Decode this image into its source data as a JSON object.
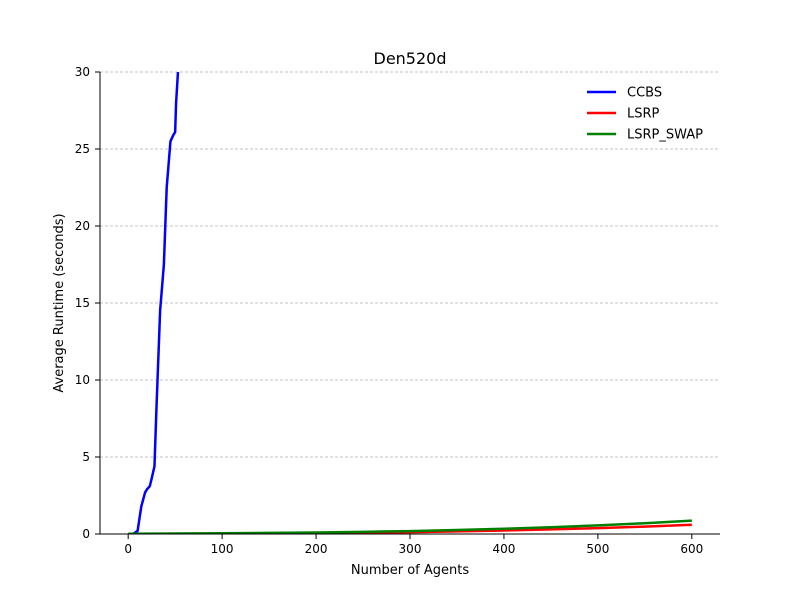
{
  "chart_data": {
    "type": "line",
    "title": "Den520d",
    "xlabel": "Number of Agents",
    "ylabel": "Average Runtime (seconds)",
    "xlim": [
      -30,
      630
    ],
    "ylim": [
      0,
      30
    ],
    "xticks": [
      0,
      100,
      200,
      300,
      400,
      500,
      600
    ],
    "yticks": [
      0,
      5,
      10,
      15,
      20,
      25,
      30
    ],
    "grid": "horizontal dashed",
    "legend_position": "top-right",
    "series": [
      {
        "name": "CCBS",
        "color": "#0000ff",
        "x": [
          1,
          5,
          10,
          14,
          18,
          20,
          23,
          25,
          28,
          30,
          34,
          38,
          41,
          45,
          48,
          50,
          51,
          53
        ],
        "y": [
          0,
          0,
          0.2,
          1.8,
          2.7,
          2.9,
          3.1,
          3.6,
          4.4,
          8.0,
          14.5,
          17.5,
          22.5,
          25.5,
          25.9,
          26.1,
          28.0,
          30
        ]
      },
      {
        "name": "LSRP",
        "color": "#ff0000",
        "x": [
          0,
          50,
          100,
          150,
          200,
          250,
          300,
          350,
          400,
          450,
          500,
          550,
          600
        ],
        "y": [
          0,
          0.005,
          0.015,
          0.03,
          0.05,
          0.08,
          0.12,
          0.17,
          0.23,
          0.3,
          0.38,
          0.48,
          0.6
        ]
      },
      {
        "name": "LSRP_SWAP",
        "color": "#008000",
        "x": [
          0,
          50,
          100,
          150,
          200,
          250,
          300,
          350,
          400,
          450,
          500,
          550,
          600
        ],
        "y": [
          0.02,
          0.03,
          0.05,
          0.07,
          0.1,
          0.14,
          0.19,
          0.26,
          0.34,
          0.44,
          0.56,
          0.7,
          0.87
        ]
      }
    ]
  }
}
